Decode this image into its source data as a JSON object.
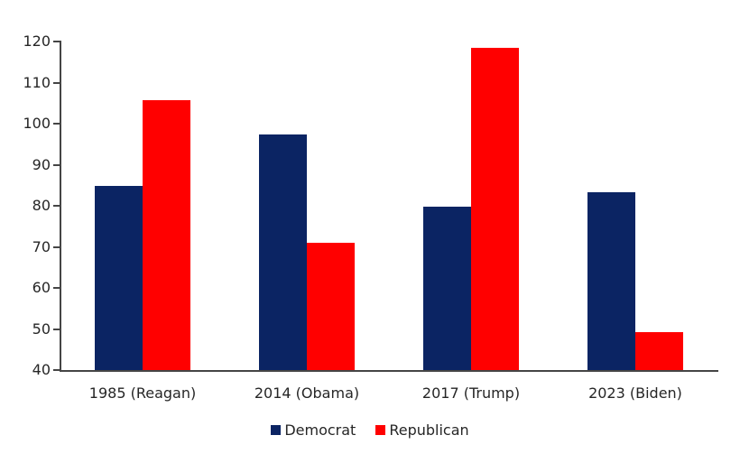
{
  "chart_data": {
    "type": "bar",
    "categories": [
      "1985 (Reagan)",
      "2014 (Obama)",
      "2017 (Trump)",
      "2023 (Biden)"
    ],
    "series": [
      {
        "name": "Democrat",
        "color": "#0b2463",
        "values": [
          84.8,
          97.4,
          79.8,
          83.3
        ]
      },
      {
        "name": "Republican",
        "color": "#ff0000",
        "values": [
          105.7,
          71.0,
          118.5,
          49.2
        ]
      }
    ],
    "ylim": [
      40,
      120
    ],
    "ytick_step": 10,
    "yticks": [
      40,
      50,
      60,
      70,
      80,
      90,
      100,
      110,
      120
    ],
    "grid": false,
    "legend_position": "bottom",
    "colors": {
      "axis": "#454545",
      "text": "#262626",
      "background": "#ffffff"
    }
  }
}
